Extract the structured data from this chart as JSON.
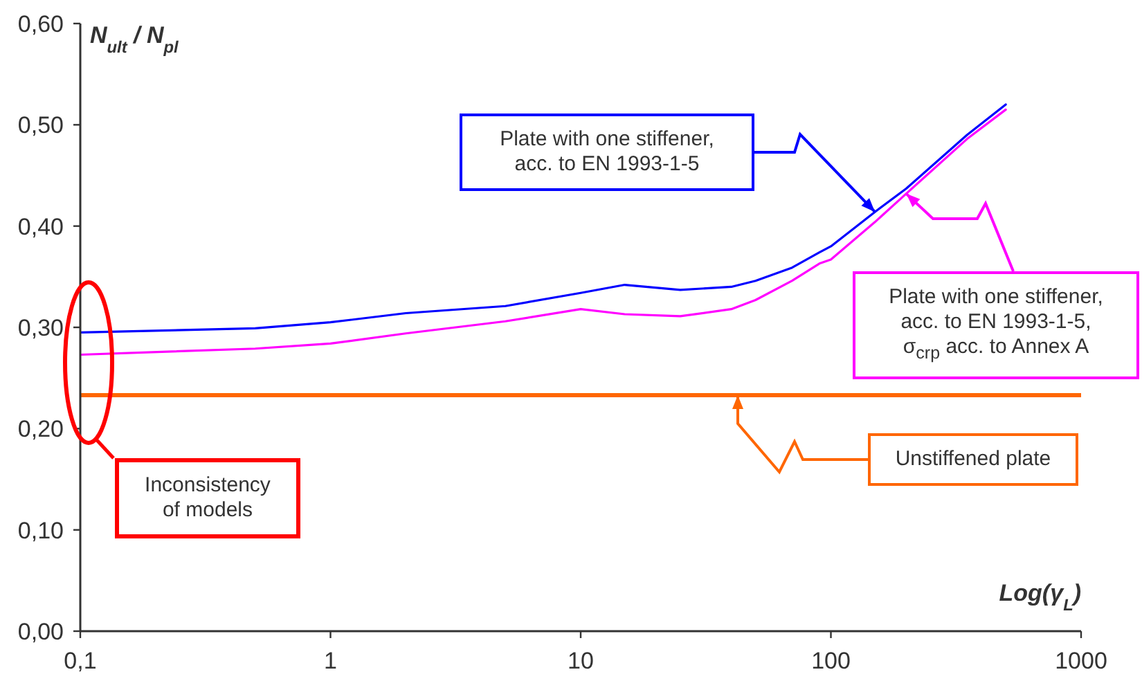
{
  "chart_data": {
    "type": "line",
    "xlabel": "Log(γ$_{L}$)",
    "ylabel": "N$_{ult}$ / N$_{pl}$",
    "xlim": [
      0.1,
      1000
    ],
    "ylim": [
      0,
      0.6
    ],
    "log": "x",
    "marker": "none",
    "xticks": [
      {
        "value": 0.1,
        "label": "0,1"
      },
      1,
      10,
      100,
      1000
    ],
    "yticks": [
      {
        "value": 0,
        "label": "0,00"
      },
      {
        "value": 0.1,
        "label": "0,10"
      },
      {
        "value": 0.2,
        "label": "0,20"
      },
      {
        "value": 0.3,
        "label": "0,30"
      },
      {
        "value": 0.4,
        "label": "0,40"
      },
      {
        "value": 0.5,
        "label": "0,50"
      },
      {
        "value": 0.6,
        "label": "0,60"
      }
    ],
    "series": [
      {
        "color": "#0000ff",
        "x": [
          0.1,
          0.5,
          1,
          2,
          5,
          10,
          15,
          25,
          40,
          50,
          70,
          90,
          100,
          150,
          200,
          350,
          500
        ],
        "values": [
          0.295,
          0.299,
          0.305,
          0.314,
          0.321,
          0.334,
          0.342,
          0.337,
          0.34,
          0.346,
          0.359,
          0.374,
          0.38,
          0.414,
          0.437,
          0.49,
          0.52
        ]
      },
      {
        "color": "#ff00ff",
        "x": [
          0.1,
          0.5,
          1,
          2,
          5,
          10,
          15,
          25,
          40,
          50,
          70,
          90,
          100,
          150,
          200,
          350,
          500
        ],
        "values": [
          0.273,
          0.279,
          0.284,
          0.294,
          0.306,
          0.318,
          0.313,
          0.311,
          0.318,
          0.327,
          0.346,
          0.363,
          0.367,
          0.404,
          0.432,
          0.486,
          0.515
        ]
      },
      {
        "color": "#ff6600",
        "x": [
          0.1,
          1000
        ],
        "values": [
          0.233,
          0.233
        ]
      }
    ],
    "annotations": [
      "Plate with one stiffener, acc. to EN 1993-1-5",
      {
        "text": "Plate with one stiffener, acc. to EN 1993-1-5, σ$_{crp}$ acc. to Annex A",
        "x": 200,
        "y": 0.432
      },
      "Unstiffened plate",
      "Inconsistency of models"
    ]
  }
}
